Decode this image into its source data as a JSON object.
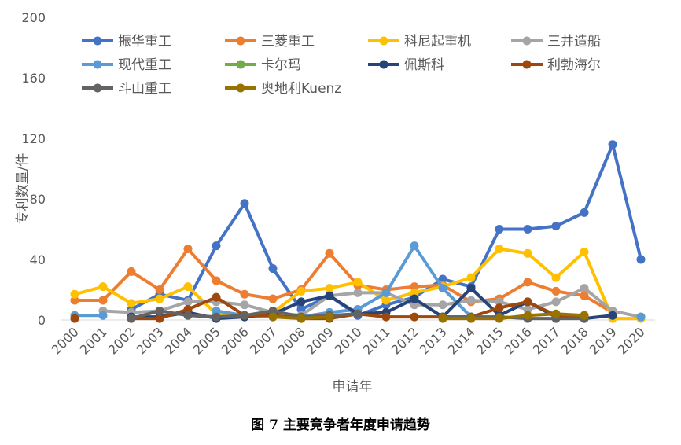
{
  "caption": "图 7  主要竞争者年度申请趋势",
  "chart_data": {
    "type": "line",
    "xlabel": "申请年",
    "ylabel": "专利数量/件",
    "ylim": [
      0,
      200
    ],
    "yticks": [
      0,
      40,
      80,
      120,
      160,
      200
    ],
    "grid": false,
    "legend_position": "top",
    "categories": [
      "2000",
      "2001",
      "2002",
      "2003",
      "2004",
      "2005",
      "2006",
      "2007",
      "2008",
      "2009",
      "2010",
      "2011",
      "2012",
      "2013",
      "2014",
      "2015",
      "2016",
      "2017",
      "2018",
      "2019",
      "2020"
    ],
    "series": [
      {
        "name": "振华重工",
        "color": "#4472C4",
        "values": [
          null,
          null,
          7,
          17,
          13,
          49,
          77,
          34,
          7,
          16,
          3,
          10,
          15,
          27,
          22,
          60,
          60,
          62,
          71,
          116,
          40
        ]
      },
      {
        "name": "三菱重工",
        "color": "#ED7D31",
        "values": [
          13,
          13,
          32,
          20,
          47,
          26,
          17,
          14,
          20,
          44,
          23,
          20,
          22,
          23,
          12,
          14,
          25,
          19,
          16,
          5,
          null
        ]
      },
      {
        "name": "科尼起重机",
        "color": "#FFC000",
        "values": [
          17,
          22,
          11,
          14,
          22,
          4,
          3,
          5,
          19,
          21,
          25,
          13,
          18,
          22,
          28,
          47,
          44,
          28,
          45,
          1,
          1
        ]
      },
      {
        "name": "三井造船",
        "color": "#A5A5A5",
        "values": [
          null,
          6,
          5,
          6,
          12,
          12,
          10,
          5,
          3,
          16,
          18,
          18,
          10,
          10,
          13,
          12,
          7,
          12,
          21,
          6,
          2
        ]
      },
      {
        "name": "现代重工",
        "color": "#5B9BD5",
        "values": [
          3,
          3,
          null,
          null,
          null,
          6,
          3,
          2,
          2,
          5,
          7,
          18,
          49,
          21,
          2,
          null,
          null,
          null,
          null,
          null,
          2
        ]
      },
      {
        "name": "卡尔玛",
        "color": "#70AD47",
        "values": [
          null,
          null,
          null,
          null,
          null,
          null,
          null,
          null,
          null,
          null,
          null,
          null,
          null,
          null,
          null,
          null,
          null,
          null,
          null,
          null,
          null
        ]
      },
      {
        "name": "佩斯科",
        "color": "#264478",
        "values": [
          null,
          null,
          2,
          2,
          5,
          1,
          2,
          4,
          12,
          16,
          4,
          5,
          14,
          2,
          21,
          3,
          12,
          2,
          1,
          3,
          null
        ]
      },
      {
        "name": "利勃海尔",
        "color": "#9E480E",
        "values": [
          1,
          null,
          1,
          1,
          7,
          15,
          3,
          3,
          1,
          1,
          4,
          2,
          2,
          2,
          2,
          8,
          12,
          3,
          3,
          null,
          null
        ]
      },
      {
        "name": "斗山重工",
        "color": "#636363",
        "values": [
          null,
          null,
          1,
          6,
          3,
          2,
          3,
          6,
          2,
          3,
          4,
          null,
          null,
          2,
          2,
          2,
          1,
          1,
          1,
          null,
          null
        ]
      },
      {
        "name": "奥地利Kuenz",
        "color": "#997300",
        "values": [
          null,
          null,
          null,
          null,
          null,
          null,
          null,
          2,
          1,
          2,
          null,
          null,
          null,
          1,
          1,
          1,
          3,
          4,
          3,
          null,
          null
        ]
      }
    ]
  }
}
